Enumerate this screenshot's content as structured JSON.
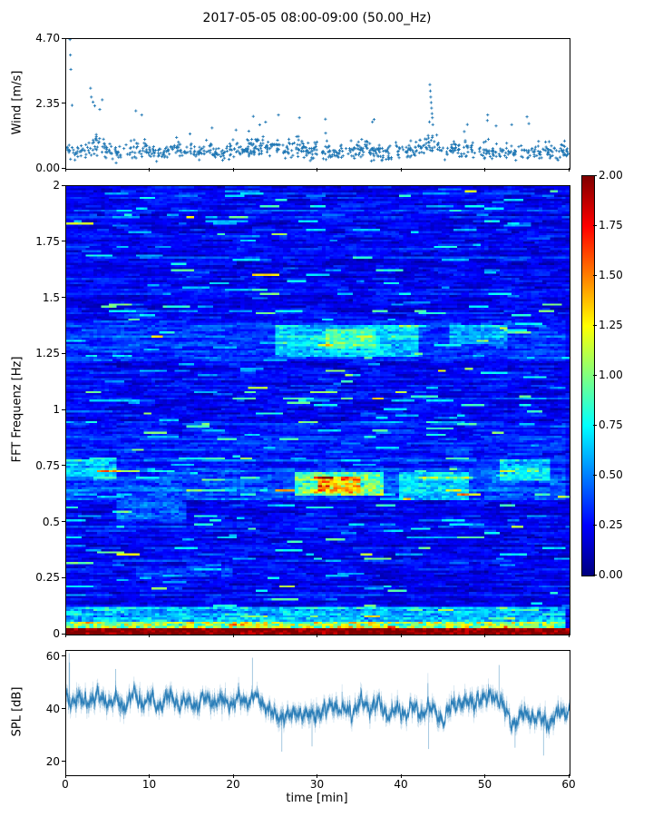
{
  "figure": {
    "title": "2017-05-05 08:00-09:00 (50.00_Hz)",
    "background": "#ffffff",
    "accent_color": "#1f77b4"
  },
  "chart_data": [
    {
      "type": "scatter",
      "name": "wind-speed",
      "ylabel": "Wind [m/s]",
      "marker": "+",
      "color": "#1f77b4",
      "xlim": [
        0,
        60
      ],
      "ylim": [
        0,
        4.7
      ],
      "yticks": [
        {
          "v": 0.0,
          "label": "0.00"
        },
        {
          "v": 2.35,
          "label": "2.35"
        },
        {
          "v": 4.7,
          "label": "4.70"
        }
      ],
      "n_points": 900,
      "seed": 20170505,
      "minute_means": [
        0.85,
        0.7,
        0.8,
        1.05,
        1.15,
        0.9,
        0.7,
        0.8,
        0.95,
        0.9,
        0.8,
        0.7,
        0.75,
        0.9,
        0.8,
        0.7,
        0.8,
        0.9,
        0.7,
        0.8,
        0.9,
        0.8,
        0.9,
        1.0,
        0.9,
        1.0,
        0.9,
        1.0,
        0.9,
        0.8,
        0.9,
        0.8,
        0.7,
        0.8,
        0.9,
        0.8,
        0.9,
        0.8,
        0.7,
        0.8,
        0.9,
        0.8,
        0.9,
        1.25,
        1.05,
        0.8,
        0.9,
        0.8,
        0.9,
        0.8,
        0.9,
        0.8,
        0.9,
        0.8,
        0.7,
        0.8,
        0.7,
        0.8,
        0.7,
        0.8,
        0.7
      ],
      "outliers": [
        [
          0.45,
          4.68
        ],
        [
          0.5,
          4.12
        ],
        [
          0.55,
          3.6
        ],
        [
          0.7,
          2.3
        ],
        [
          2.9,
          2.92
        ],
        [
          3.0,
          2.6
        ],
        [
          3.2,
          2.42
        ],
        [
          3.4,
          2.28
        ],
        [
          4.0,
          2.15
        ],
        [
          4.3,
          2.5
        ],
        [
          8.3,
          2.1
        ],
        [
          9.0,
          1.95
        ],
        [
          22.3,
          1.9
        ],
        [
          25.3,
          1.95
        ],
        [
          27.8,
          1.85
        ],
        [
          30.9,
          1.8
        ],
        [
          36.5,
          1.7
        ],
        [
          43.3,
          1.7
        ],
        [
          43.35,
          3.05
        ],
        [
          43.4,
          2.82
        ],
        [
          43.45,
          2.6
        ],
        [
          43.5,
          2.4
        ],
        [
          43.55,
          2.2
        ],
        [
          43.6,
          2.0
        ],
        [
          43.65,
          1.85
        ],
        [
          43.7,
          1.6
        ],
        [
          50.2,
          1.75
        ],
        [
          53.1,
          1.6
        ]
      ]
    },
    {
      "type": "heatmap",
      "name": "fft-spectrogram",
      "ylabel": "FFT Frequenz [Hz]",
      "xlim": [
        0,
        60
      ],
      "ylim": [
        0,
        2
      ],
      "yticks": [
        {
          "v": 0,
          "label": "0"
        },
        {
          "v": 0.25,
          "label": "0.25"
        },
        {
          "v": 0.5,
          "label": "0.5"
        },
        {
          "v": 0.75,
          "label": "0.75"
        },
        {
          "v": 1,
          "label": "1"
        },
        {
          "v": 1.25,
          "label": "1.25"
        },
        {
          "v": 1.5,
          "label": "1.5"
        },
        {
          "v": 1.75,
          "label": "1.75"
        },
        {
          "v": 2,
          "label": "2"
        }
      ],
      "colormap": "jet",
      "colormap_stops": [
        [
          0.0,
          "#000080"
        ],
        [
          0.125,
          "#0000ff"
        ],
        [
          0.375,
          "#00ffff"
        ],
        [
          0.625,
          "#ffff00"
        ],
        [
          0.875,
          "#ff0000"
        ],
        [
          1.0,
          "#800000"
        ]
      ],
      "value_range": [
        0,
        2
      ],
      "grid": {
        "n_time": 130,
        "n_freq": 210
      },
      "seed": 987,
      "base": {
        "mean": 0.3,
        "row_jitter": 0.3,
        "streaky_row_p": 0.18
      },
      "bands": [
        {
          "f": [
            0.0,
            0.02
          ],
          "t": [
            0,
            60
          ],
          "boost": 1.55
        },
        {
          "f": [
            0.02,
            0.05
          ],
          "t": [
            0,
            60
          ],
          "boost": 0.8
        },
        {
          "f": [
            0.05,
            0.12
          ],
          "t": [
            0,
            60
          ],
          "boost": 0.35
        },
        {
          "f": [
            0.6,
            0.74
          ],
          "t": [
            0,
            60
          ],
          "boost": 0.16
        },
        {
          "f": [
            0.62,
            0.72
          ],
          "t": [
            27,
            38
          ],
          "boost": 0.5
        },
        {
          "f": [
            0.63,
            0.7
          ],
          "t": [
            30,
            35
          ],
          "boost": 0.45
        },
        {
          "f": [
            0.6,
            0.72
          ],
          "t": [
            40,
            48
          ],
          "boost": 0.28
        },
        {
          "f": [
            0.68,
            0.78
          ],
          "t": [
            52,
            58
          ],
          "boost": 0.3
        },
        {
          "f": [
            0.7,
            0.78
          ],
          "t": [
            0,
            6
          ],
          "boost": 0.3
        },
        {
          "f": [
            1.22,
            1.4
          ],
          "t": [
            0,
            60
          ],
          "boost": 0.1
        },
        {
          "f": [
            1.24,
            1.38
          ],
          "t": [
            25,
            42
          ],
          "boost": 0.3
        },
        {
          "f": [
            1.28,
            1.36
          ],
          "t": [
            31,
            37
          ],
          "boost": 0.25
        },
        {
          "f": [
            1.3,
            1.38
          ],
          "t": [
            46,
            53
          ],
          "boost": 0.25
        },
        {
          "f": [
            0.74,
            0.95
          ],
          "t": [
            0,
            60
          ],
          "boost": 0.07
        },
        {
          "f": [
            0.5,
            0.6
          ],
          "t": [
            6,
            14
          ],
          "boost": 0.22
        },
        {
          "f": [
            0.25,
            0.3
          ],
          "t": [
            8,
            20
          ],
          "boost": 0.12
        }
      ],
      "colorbar": {
        "ticks": [
          {
            "v": 0.0,
            "label": "0.00"
          },
          {
            "v": 0.25,
            "label": "0.25"
          },
          {
            "v": 0.5,
            "label": "0.50"
          },
          {
            "v": 0.75,
            "label": "0.75"
          },
          {
            "v": 1.0,
            "label": "1.00"
          },
          {
            "v": 1.25,
            "label": "1.25"
          },
          {
            "v": 1.5,
            "label": "1.50"
          },
          {
            "v": 1.75,
            "label": "1.75"
          },
          {
            "v": 2.0,
            "label": "2.00"
          }
        ]
      }
    },
    {
      "type": "line",
      "name": "spl",
      "ylabel": "SPL [dB]",
      "xlabel": "time [min]",
      "color": "#1f77b4",
      "xlim": [
        0,
        60
      ],
      "ylim": [
        15,
        62.4
      ],
      "yticks": [
        {
          "v": 20,
          "label": "20"
        },
        {
          "v": 40,
          "label": "40"
        },
        {
          "v": 60,
          "label": "60"
        }
      ],
      "xticks": [
        {
          "v": 0,
          "label": "0"
        },
        {
          "v": 10,
          "label": "10"
        },
        {
          "v": 20,
          "label": "20"
        },
        {
          "v": 30,
          "label": "30"
        },
        {
          "v": 40,
          "label": "40"
        },
        {
          "v": 50,
          "label": "50"
        },
        {
          "v": 60,
          "label": "60"
        }
      ],
      "seed": 555,
      "n_samples": 3600,
      "noise_db": 4.2,
      "minute_means": [
        44,
        45,
        43,
        44,
        43,
        44,
        43,
        42,
        44,
        43,
        44,
        43,
        44,
        43,
        42,
        44,
        43,
        44,
        42,
        43,
        44,
        43,
        44,
        43,
        42,
        37,
        39,
        36,
        40,
        37,
        41,
        38,
        42,
        39,
        41,
        43,
        40,
        42,
        39,
        41,
        38,
        40,
        37,
        42,
        39,
        36,
        40,
        44,
        42,
        45,
        43,
        46,
        41,
        38,
        36,
        39,
        35,
        37,
        36,
        40,
        39
      ],
      "spikes": [
        [
          0.35,
          61.5
        ],
        [
          0.4,
          58
        ],
        [
          5.9,
          55.5
        ],
        [
          22.2,
          59.8
        ],
        [
          25.7,
          24
        ],
        [
          29.3,
          26
        ],
        [
          43.2,
          25
        ],
        [
          51.6,
          57
        ],
        [
          53.5,
          25.5
        ],
        [
          56.9,
          22.5
        ]
      ]
    }
  ]
}
